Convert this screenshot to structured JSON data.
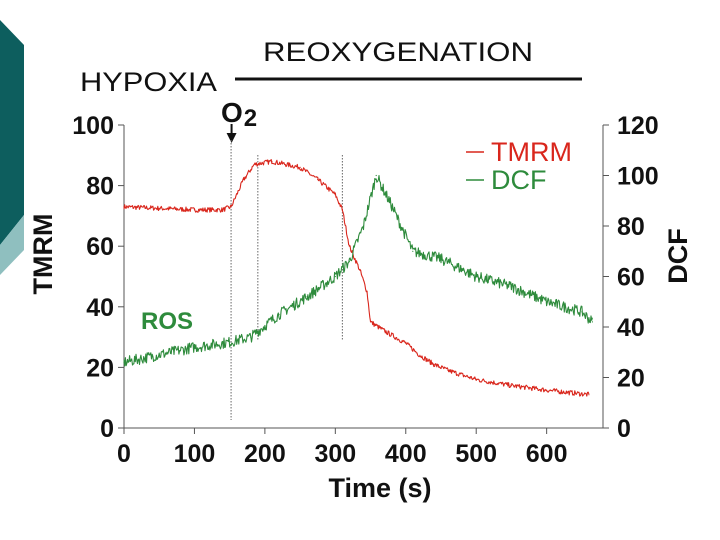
{
  "colors": {
    "tmrm": "#d9261c",
    "dcf": "#2e8b3c",
    "ros_label": "#2e8b3c",
    "sidebar_dark": "#0d5e5e",
    "sidebar_light": "#8fbfbf"
  },
  "chart_data": {
    "type": "line",
    "title": "",
    "phase_labels": {
      "hypoxia": "HYPOXIA",
      "reoxygenation": "REOXYGENATION"
    },
    "event_marker": {
      "label_main": "O",
      "label_sub": "2",
      "x": 152
    },
    "reference_lines_x": [
      152,
      190,
      310
    ],
    "xlabel": "Time (s)",
    "ylabel_left": "TMRM",
    "ylabel_right": "DCF",
    "xlim": [
      0,
      680
    ],
    "ylim_left": [
      0,
      100
    ],
    "ylim_right": [
      0,
      120
    ],
    "x_ticks": [
      "0",
      "100",
      "200",
      "300",
      "400",
      "500",
      "600"
    ],
    "y_left_ticks": [
      "0",
      "20",
      "40",
      "60",
      "80",
      "100"
    ],
    "y_right_ticks": [
      "0",
      "20",
      "40",
      "60",
      "80",
      "100",
      "120"
    ],
    "annotation": "ROS",
    "series": [
      {
        "name": "TMRM",
        "axis": "left",
        "points": [
          [
            0,
            73
          ],
          [
            50,
            72.5
          ],
          [
            100,
            72
          ],
          [
            140,
            72
          ],
          [
            152,
            73
          ],
          [
            170,
            82
          ],
          [
            185,
            87
          ],
          [
            210,
            88
          ],
          [
            250,
            86
          ],
          [
            275,
            82
          ],
          [
            300,
            77
          ],
          [
            310,
            72
          ],
          [
            320,
            60
          ],
          [
            335,
            52
          ],
          [
            345,
            45
          ],
          [
            350,
            35
          ],
          [
            370,
            32
          ],
          [
            400,
            28
          ],
          [
            420,
            24
          ],
          [
            440,
            21
          ],
          [
            460,
            19
          ],
          [
            500,
            16
          ],
          [
            550,
            14
          ],
          [
            600,
            12.5
          ],
          [
            660,
            11
          ]
        ]
      },
      {
        "name": "DCF",
        "axis": "right",
        "points": [
          [
            0,
            26
          ],
          [
            50,
            29
          ],
          [
            100,
            32
          ],
          [
            150,
            34
          ],
          [
            180,
            36
          ],
          [
            220,
            45
          ],
          [
            260,
            52
          ],
          [
            300,
            60
          ],
          [
            320,
            66
          ],
          [
            340,
            80
          ],
          [
            358,
            100
          ],
          [
            380,
            88
          ],
          [
            410,
            70
          ],
          [
            450,
            67
          ],
          [
            500,
            60
          ],
          [
            550,
            56
          ],
          [
            600,
            50
          ],
          [
            650,
            46
          ],
          [
            665,
            42
          ]
        ]
      }
    ]
  }
}
